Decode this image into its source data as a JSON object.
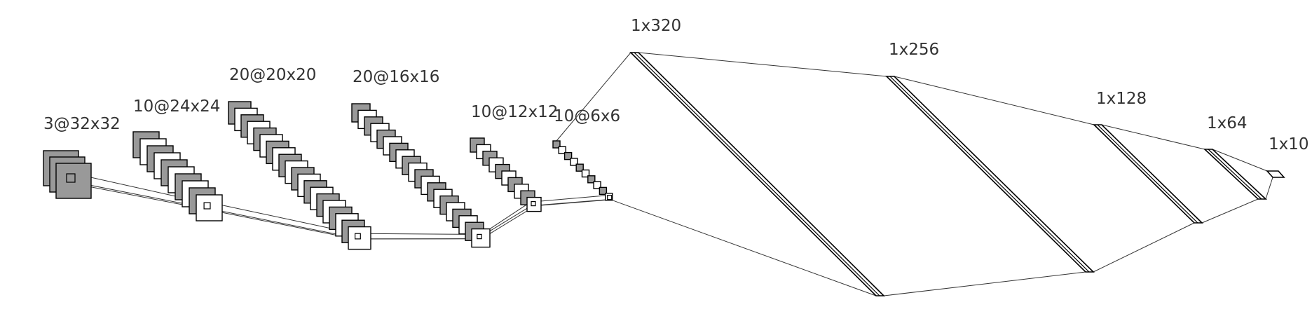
{
  "layers": [
    {
      "id": "input",
      "label": "3@32x32",
      "kind": "conv",
      "maps": 3
    },
    {
      "id": "conv1",
      "label": "10@24x24",
      "kind": "conv",
      "maps": 10
    },
    {
      "id": "conv2",
      "label": "20@20x20",
      "kind": "conv",
      "maps": 20
    },
    {
      "id": "pool1",
      "label": "20@16x16",
      "kind": "conv",
      "maps": 20
    },
    {
      "id": "conv3",
      "label": "10@12x12",
      "kind": "conv",
      "maps": 10
    },
    {
      "id": "pool2",
      "label": "10@6x6",
      "kind": "conv",
      "maps": 10
    },
    {
      "id": "fc1",
      "label": "1x320",
      "kind": "dense"
    },
    {
      "id": "fc2",
      "label": "1x256",
      "kind": "dense"
    },
    {
      "id": "fc3",
      "label": "1x128",
      "kind": "dense"
    },
    {
      "id": "fc4",
      "label": "1x64",
      "kind": "dense"
    },
    {
      "id": "output",
      "label": "1x10",
      "kind": "dense"
    }
  ],
  "colors": {
    "map_fill_alternate": "#999999",
    "map_fill": "#ffffff",
    "stroke": "#000000",
    "connection": "#333333",
    "label": "#333333"
  }
}
